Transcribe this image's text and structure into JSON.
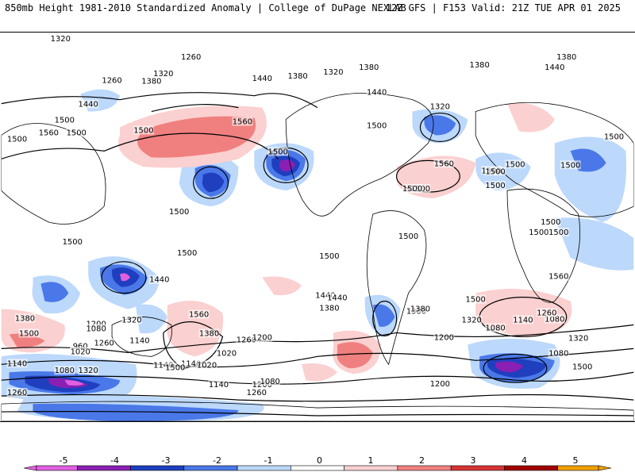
{
  "header": {
    "title": "850mb Height 1981-2010 Standardized Anomaly | College of DuPage NEXLAB",
    "run_info": "12Z GFS | F153 Valid: 21Z TUE APR 01 2025"
  },
  "colors": {
    "minus5": "#e060e0",
    "minus4": "#8a1fb3",
    "minus3": "#1f3fbf",
    "minus2": "#4a78e8",
    "minus1": "#bcd8fb",
    "neutral": "#ffffff",
    "plus1": "#fbd0d0",
    "plus2": "#f08080",
    "plus3": "#d63434",
    "plus4": "#a00000",
    "plus5": "#f0a000"
  },
  "colorbar": {
    "ticks": [
      "-5",
      "-4",
      "-3",
      "-2",
      "-1",
      "0",
      "1",
      "2",
      "3",
      "4",
      "5"
    ]
  },
  "contour_labels": [
    "1320",
    "1260",
    "1260",
    "1320",
    "1380",
    "1440",
    "1380",
    "1320",
    "1380",
    "1380",
    "1440",
    "1440",
    "1500",
    "1560",
    "1500",
    "1560",
    "1500",
    "1500",
    "1380",
    "1320",
    "1440",
    "1500",
    "1500",
    "1500",
    "1500",
    "1500",
    "1560",
    "1500",
    "1500",
    "1500",
    "1500",
    "1500",
    "1500",
    "1440",
    "1500",
    "1560",
    "1500",
    "1500",
    "1500",
    "1560",
    "1440",
    "1380",
    "1500",
    "1260",
    "1380",
    "1320",
    "1200",
    "1080",
    "1380",
    "1260",
    "1320",
    "1200",
    "1140",
    "1020",
    "1080",
    "1140",
    "1080",
    "1260",
    "1200",
    "1380",
    "960",
    "1020",
    "1140",
    "1020",
    "1140",
    "1080",
    "1260",
    "1200",
    "1140",
    "1320",
    "1080",
    "1140",
    "1080",
    "1200",
    "1260",
    "1500",
    "1500",
    "1500",
    "1500",
    "1500",
    "1500",
    "1320",
    "1380",
    "1440"
  ]
}
